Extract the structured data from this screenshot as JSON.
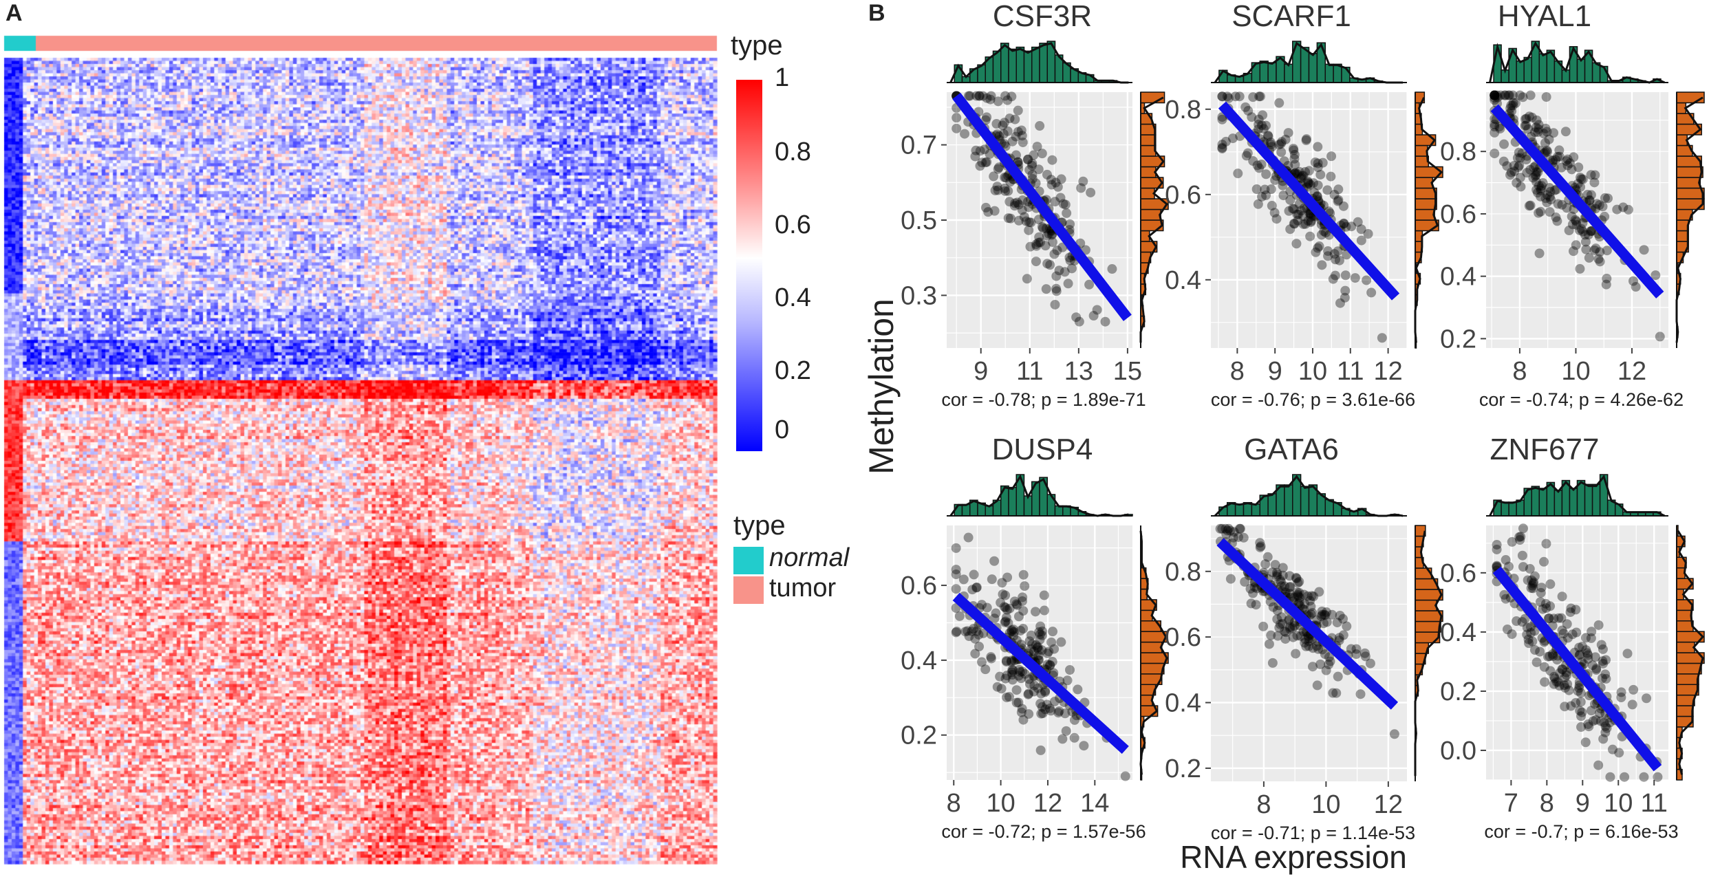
{
  "panel_a": {
    "label": "A",
    "annotation_title": "type",
    "colorbar": {
      "ticks": [
        "1",
        "0.8",
        "0.6",
        "0.4",
        "0.2",
        "0"
      ]
    },
    "type_legend": {
      "title": "type",
      "items": [
        {
          "label": "normal",
          "color": "#22CCCC"
        },
        {
          "label": "tumor",
          "color": "#F8938A"
        }
      ]
    },
    "colors": {
      "low": "#0000FF",
      "mid": "#FFFFFF",
      "high": "#FF0000"
    }
  },
  "panel_b": {
    "label": "B",
    "ylabel": "Methylation",
    "xlabel": "RNA expression",
    "colors": {
      "top_hist": "#1B7F5B",
      "side_hist": "#D5651A",
      "fit_line": "#1010E8",
      "point": "#000000"
    }
  },
  "chart_data": [
    {
      "type": "heatmap",
      "title": "",
      "value_range": [
        0,
        1
      ],
      "column_annotation": {
        "name": "type",
        "categories": [
          "normal",
          "tumor"
        ]
      }
    },
    {
      "type": "scatter",
      "title": "CSF3R",
      "xlim": [
        7.6,
        15.2
      ],
      "ylim": [
        0.16,
        0.84
      ],
      "xticks": [
        9,
        11,
        13,
        15
      ],
      "yticks": [
        0.3,
        0.5,
        0.7
      ],
      "ytick_labels": [
        "0.3",
        "0.5",
        "0.7"
      ],
      "fit": {
        "x": [
          8,
          15
        ],
        "y": [
          0.83,
          0.24
        ]
      },
      "x_mean": 10.8,
      "x_sd": 1.4,
      "y_sd": 0.09,
      "annotation": "cor = -0.78; p = 1.89e-71"
    },
    {
      "type": "scatter",
      "title": "SCARF1",
      "xlim": [
        7.3,
        12.5
      ],
      "ylim": [
        0.24,
        0.84
      ],
      "xticks": [
        8,
        9,
        10,
        11,
        12
      ],
      "yticks": [
        0.4,
        0.6,
        0.8
      ],
      "ytick_labels": [
        "0.4",
        "0.6",
        "0.8"
      ],
      "fit": {
        "x": [
          7.6,
          12.2
        ],
        "y": [
          0.81,
          0.36
        ]
      },
      "x_mean": 9.6,
      "x_sd": 0.9,
      "y_sd": 0.06,
      "annotation": "cor = -0.76; p = 3.61e-66"
    },
    {
      "type": "scatter",
      "title": "HYAL1",
      "xlim": [
        6.8,
        13.3
      ],
      "ylim": [
        0.17,
        0.99
      ],
      "xticks": [
        8,
        10,
        12
      ],
      "yticks": [
        0.2,
        0.4,
        0.6,
        0.8
      ],
      "ytick_labels": [
        "0.2",
        "0.4",
        "0.6",
        "0.8"
      ],
      "fit": {
        "x": [
          7.1,
          13
        ],
        "y": [
          0.94,
          0.34
        ]
      },
      "x_mean": 9.0,
      "x_sd": 1.3,
      "y_sd": 0.1,
      "annotation": "cor = -0.74; p = 4.26e-62"
    },
    {
      "type": "scatter",
      "title": "DUSP4",
      "xlim": [
        7.7,
        15.6
      ],
      "ylim": [
        0.08,
        0.76
      ],
      "xticks": [
        8,
        10,
        12,
        14
      ],
      "yticks": [
        0.2,
        0.4,
        0.6
      ],
      "ytick_labels": [
        "0.2",
        "0.4",
        "0.6"
      ],
      "fit": {
        "x": [
          8.1,
          15.3
        ],
        "y": [
          0.57,
          0.16
        ]
      },
      "x_mean": 10.8,
      "x_sd": 1.4,
      "y_sd": 0.08,
      "annotation": "cor = -0.72; p = 1.57e-56"
    },
    {
      "type": "scatter",
      "title": "GATA6",
      "xlim": [
        6.3,
        12.6
      ],
      "ylim": [
        0.16,
        0.94
      ],
      "xticks": [
        8,
        10,
        12
      ],
      "yticks": [
        0.2,
        0.4,
        0.6,
        0.8
      ],
      "ytick_labels": [
        "0.2",
        "0.4",
        "0.6",
        "0.8"
      ],
      "fit": {
        "x": [
          6.6,
          12.2
        ],
        "y": [
          0.89,
          0.39
        ]
      },
      "x_mean": 8.8,
      "x_sd": 1.1,
      "y_sd": 0.07,
      "annotation": "cor = -0.71; p = 1.14e-53"
    },
    {
      "type": "scatter",
      "title": "ZNF677",
      "xlim": [
        6.3,
        11.4
      ],
      "ylim": [
        -0.1,
        0.76
      ],
      "xticks": [
        7,
        8,
        9,
        10,
        11
      ],
      "yticks": [
        0.0,
        0.2,
        0.4,
        0.6
      ],
      "ytick_labels": [
        "0.0",
        "0.2",
        "0.4",
        "0.6"
      ],
      "fit": {
        "x": [
          6.6,
          11.1
        ],
        "y": [
          0.61,
          -0.06
        ]
      },
      "x_mean": 8.4,
      "x_sd": 1.0,
      "y_sd": 0.1,
      "annotation": "cor = -0.7; p = 6.16e-53"
    }
  ]
}
